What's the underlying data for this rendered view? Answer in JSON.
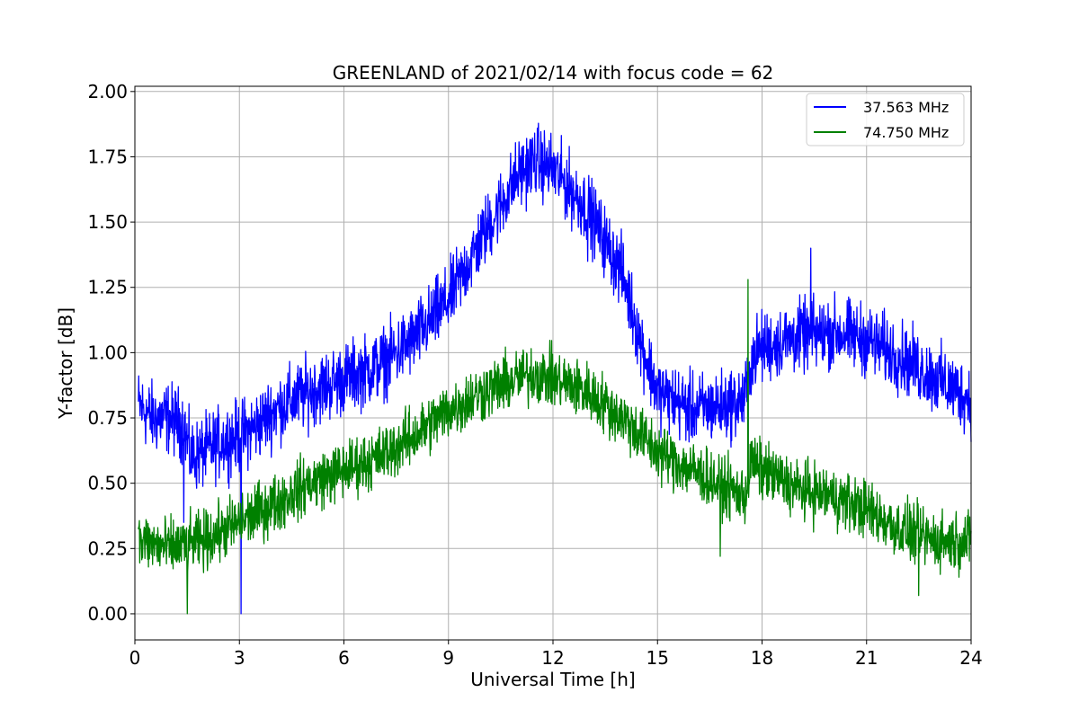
{
  "chart_data": {
    "type": "line",
    "title": "GREENLAND of 2021/02/14 with focus code = 62",
    "xlabel": "Universal Time [h]",
    "ylabel": "Y-factor [dB]",
    "xlim": [
      0,
      24
    ],
    "ylim": [
      -0.1,
      2.02
    ],
    "xticks": [
      0,
      3,
      6,
      9,
      12,
      15,
      18,
      21,
      24
    ],
    "xtick_labels": [
      "0",
      "3",
      "6",
      "9",
      "12",
      "15",
      "18",
      "21",
      "24"
    ],
    "yticks": [
      0.0,
      0.25,
      0.5,
      0.75,
      1.0,
      1.25,
      1.5,
      1.75,
      2.0
    ],
    "ytick_labels": [
      "0.00",
      "0.25",
      "0.50",
      "0.75",
      "1.00",
      "1.25",
      "1.50",
      "1.75",
      "2.00"
    ],
    "grid": true,
    "legend_position": "top-right",
    "series": [
      {
        "name": "37.563 MHz",
        "color": "#0000ff",
        "noise": 0.12,
        "spikes": [
          [
            3.05,
            0.0
          ],
          [
            13.0,
            1.35
          ],
          [
            1.4,
            0.35
          ],
          [
            19.4,
            1.4
          ],
          [
            17.6,
            0.55
          ]
        ],
        "x": [
          0.1,
          0.5,
          1.0,
          1.4,
          1.6,
          2.0,
          2.5,
          3.0,
          3.5,
          4.0,
          5.0,
          6.0,
          7.0,
          8.0,
          9.0,
          10.0,
          11.0,
          11.5,
          12.0,
          13.0,
          14.0,
          14.5,
          15.0,
          16.0,
          17.0,
          17.5,
          17.7,
          18.0,
          19.0,
          20.0,
          21.0,
          22.0,
          23.0,
          24.0
        ],
        "y": [
          0.8,
          0.75,
          0.75,
          0.72,
          0.6,
          0.62,
          0.66,
          0.68,
          0.72,
          0.78,
          0.85,
          0.9,
          0.95,
          1.05,
          1.2,
          1.45,
          1.68,
          1.74,
          1.7,
          1.55,
          1.3,
          1.05,
          0.85,
          0.78,
          0.8,
          0.82,
          0.98,
          1.02,
          1.06,
          1.08,
          1.05,
          0.98,
          0.9,
          0.82
        ]
      },
      {
        "name": "74.750 MHz",
        "color": "#008000",
        "noise": 0.1,
        "spikes": [
          [
            17.6,
            1.28
          ],
          [
            1.5,
            0.0
          ],
          [
            16.8,
            0.22
          ],
          [
            22.5,
            0.07
          ]
        ],
        "x": [
          0.1,
          1.0,
          2.0,
          3.0,
          4.0,
          5.0,
          6.0,
          7.0,
          8.0,
          9.0,
          10.0,
          11.0,
          11.5,
          12.0,
          13.0,
          14.0,
          15.0,
          16.0,
          17.0,
          17.5,
          17.7,
          18.0,
          19.0,
          20.0,
          21.0,
          22.0,
          23.0,
          24.0
        ],
        "y": [
          0.28,
          0.25,
          0.28,
          0.35,
          0.42,
          0.5,
          0.55,
          0.6,
          0.68,
          0.78,
          0.85,
          0.9,
          0.92,
          0.9,
          0.85,
          0.75,
          0.62,
          0.55,
          0.48,
          0.45,
          0.58,
          0.55,
          0.48,
          0.45,
          0.4,
          0.32,
          0.28,
          0.28
        ]
      }
    ]
  }
}
